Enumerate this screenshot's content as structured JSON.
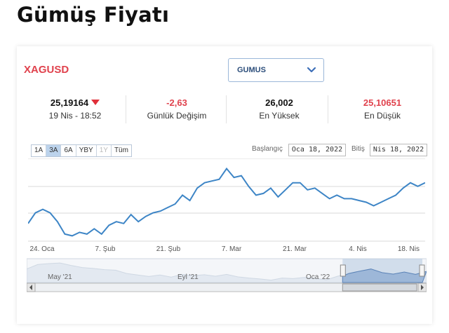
{
  "page_title": "Gümüş Fiyatı",
  "symbol": "XAGUSD",
  "selector": {
    "value": "GUMUS"
  },
  "stats": {
    "price": "25,19164",
    "price_time": "19 Nis - 18:52",
    "change": "-2,63",
    "change_label": "Günlük Değişim",
    "high": "26,002",
    "high_label": "En Yüksek",
    "low": "25,10651",
    "low_label": "En Düşük"
  },
  "range_buttons": [
    {
      "label": "1A",
      "state": "normal"
    },
    {
      "label": "3A",
      "state": "active"
    },
    {
      "label": "6A",
      "state": "normal"
    },
    {
      "label": "YBY",
      "state": "normal"
    },
    {
      "label": "1Y",
      "state": "disabled"
    },
    {
      "label": "Tüm",
      "state": "normal"
    }
  ],
  "date_range": {
    "start_label": "Başlangıç",
    "start_value": "Oca 18, 2022",
    "end_label": "Bitiş",
    "end_value": "Nis 18, 2022"
  },
  "colors": {
    "accent_red": "#e0424d",
    "line_blue": "#3d85c6"
  },
  "chart_data": {
    "type": "line",
    "x_tick_labels": [
      "24. Oca",
      "7. Şub",
      "21. Şub",
      "7. Mar",
      "21. Mar",
      "4. Nis",
      "18. Nis"
    ],
    "grid": true,
    "series": [
      {
        "values": [
          22.9,
          23.5,
          23.7,
          23.5,
          23.0,
          22.3,
          22.2,
          22.4,
          22.3,
          22.6,
          22.3,
          22.8,
          23.0,
          22.9,
          23.4,
          23.0,
          23.3,
          23.5,
          23.6,
          23.8,
          24.0,
          24.5,
          24.2,
          24.9,
          25.2,
          25.3,
          25.4,
          26.0,
          25.5,
          25.6,
          25.0,
          24.5,
          24.6,
          24.9,
          24.4,
          24.8,
          25.2,
          25.2,
          24.8,
          24.9,
          24.6,
          24.3,
          24.5,
          24.3,
          24.3,
          24.2,
          24.1,
          23.9,
          24.1,
          24.3,
          24.5,
          24.9,
          25.2,
          25.0,
          25.2
        ]
      }
    ],
    "navigator": {
      "x_labels": [
        "May '21",
        "Eyl '21",
        "Oca '22"
      ],
      "values": [
        26.0,
        27.5,
        27.8,
        28.0,
        27.2,
        26.5,
        26.2,
        25.8,
        25.6,
        24.5,
        24.0,
        23.5,
        24.0,
        23.3,
        24.2,
        23.8,
        24.1,
        23.6,
        24.2,
        23.4,
        23.0,
        22.7,
        22.3,
        23.0,
        22.8,
        23.2,
        22.9,
        22.4,
        23.6,
        24.5,
        25.3,
        26.0,
        24.8,
        24.3,
        25.0,
        24.2,
        25.2
      ],
      "selected_from": 0.79
    }
  }
}
